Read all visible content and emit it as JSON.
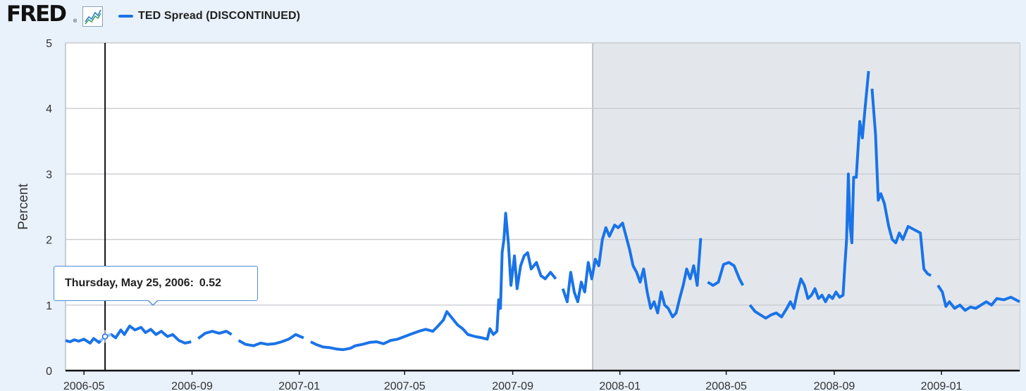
{
  "header": {
    "logo_text": "FRED",
    "logo_reg": "®",
    "logo_icon": "fred-graph-icon",
    "legend_label": "TED Spread (DISCONTINUED)"
  },
  "tooltip": {
    "date_label": "Thursday, May 25, 2006:",
    "value_label": "0.52"
  },
  "chart_data": {
    "type": "line",
    "title": "",
    "xlabel": "",
    "ylabel": "Percent",
    "xlim": [
      "2006-04-10",
      "2009-03-31"
    ],
    "ylim": [
      0,
      5
    ],
    "yticks": [
      0,
      1,
      2,
      3,
      4,
      5
    ],
    "xticks": [
      "2006-05",
      "2006-09",
      "2007-01",
      "2007-05",
      "2007-09",
      "2008-01",
      "2008-05",
      "2008-09",
      "2009-01"
    ],
    "grid": true,
    "legend_position": "top-left",
    "recession_shading": {
      "start": "2007-12-01",
      "end": "2009-03-31"
    },
    "hover": {
      "date": "2006-05-25",
      "value": 0.52
    },
    "colors": {
      "line": "#1a73e8",
      "recession": "#e3e7ec",
      "tooltip_border": "#4d8fd6"
    },
    "series": [
      {
        "name": "TED Spread (DISCONTINUED)",
        "points": [
          [
            "2006-04-10",
            0.46
          ],
          [
            "2006-04-15",
            0.44
          ],
          [
            "2006-04-20",
            0.47
          ],
          [
            "2006-04-25",
            0.45
          ],
          [
            "2006-05-01",
            0.48
          ],
          [
            "2006-05-08",
            0.42
          ],
          [
            "2006-05-12",
            0.49
          ],
          [
            "2006-05-18",
            0.43
          ],
          [
            "2006-05-25",
            0.52
          ],
          [
            "2006-06-01",
            0.55
          ],
          [
            "2006-06-06",
            0.5
          ],
          [
            "2006-06-12",
            0.62
          ],
          [
            "2006-06-16",
            0.55
          ],
          [
            "2006-06-22",
            0.68
          ],
          [
            "2006-06-28",
            0.62
          ],
          [
            "2006-07-05",
            0.66
          ],
          [
            "2006-07-10",
            0.58
          ],
          [
            "2006-07-16",
            0.63
          ],
          [
            "2006-07-22",
            0.55
          ],
          [
            "2006-07-28",
            0.6
          ],
          [
            "2006-08-04",
            0.52
          ],
          [
            "2006-08-10",
            0.55
          ],
          [
            "2006-08-17",
            0.46
          ],
          [
            "2006-08-24",
            0.42
          ],
          [
            "2006-08-31",
            0.44
          ],
          [
            null,
            null
          ],
          [
            "2006-09-08",
            0.49
          ],
          [
            "2006-09-16",
            0.57
          ],
          [
            "2006-09-24",
            0.6
          ],
          [
            "2006-10-02",
            0.57
          ],
          [
            "2006-10-10",
            0.6
          ],
          [
            "2006-10-16",
            0.55
          ],
          [
            null,
            null
          ],
          [
            "2006-10-24",
            0.46
          ],
          [
            "2006-11-01",
            0.4
          ],
          [
            "2006-11-10",
            0.38
          ],
          [
            "2006-11-18",
            0.42
          ],
          [
            "2006-11-26",
            0.4
          ],
          [
            "2006-12-04",
            0.41
          ],
          [
            "2006-12-12",
            0.44
          ],
          [
            "2006-12-20",
            0.48
          ],
          [
            "2006-12-28",
            0.55
          ],
          [
            "2007-01-02",
            0.52
          ],
          [
            "2007-01-06",
            0.5
          ],
          [
            null,
            null
          ],
          [
            "2007-01-14",
            0.44
          ],
          [
            "2007-01-20",
            0.4
          ],
          [
            "2007-01-28",
            0.36
          ],
          [
            "2007-02-05",
            0.35
          ],
          [
            "2007-02-12",
            0.33
          ],
          [
            "2007-02-20",
            0.32
          ],
          [
            "2007-02-28",
            0.34
          ],
          [
            "2007-03-06",
            0.38
          ],
          [
            "2007-03-14",
            0.4
          ],
          [
            "2007-03-22",
            0.43
          ],
          [
            "2007-03-30",
            0.44
          ],
          [
            "2007-04-07",
            0.41
          ],
          [
            "2007-04-15",
            0.46
          ],
          [
            "2007-04-23",
            0.48
          ],
          [
            "2007-05-01",
            0.52
          ],
          [
            "2007-05-09",
            0.56
          ],
          [
            "2007-05-17",
            0.6
          ],
          [
            "2007-05-25",
            0.63
          ],
          [
            "2007-06-02",
            0.6
          ],
          [
            "2007-06-08",
            0.68
          ],
          [
            "2007-06-14",
            0.77
          ],
          [
            "2007-06-18",
            0.9
          ],
          [
            "2007-06-24",
            0.8
          ],
          [
            "2007-06-30",
            0.7
          ],
          [
            "2007-07-06",
            0.64
          ],
          [
            "2007-07-12",
            0.55
          ],
          [
            "2007-07-20",
            0.52
          ],
          [
            "2007-07-28",
            0.5
          ],
          [
            "2007-08-03",
            0.48
          ],
          [
            "2007-08-06",
            0.64
          ],
          [
            "2007-08-10",
            0.55
          ],
          [
            "2007-08-14",
            0.6
          ],
          [
            "2007-08-16",
            1.08
          ],
          [
            "2007-08-18",
            0.95
          ],
          [
            "2007-08-20",
            1.8
          ],
          [
            "2007-08-22",
            2.0
          ],
          [
            "2007-08-24",
            2.4
          ],
          [
            "2007-08-27",
            1.95
          ],
          [
            "2007-08-30",
            1.3
          ],
          [
            "2007-09-03",
            1.75
          ],
          [
            "2007-09-06",
            1.25
          ],
          [
            "2007-09-10",
            1.6
          ],
          [
            "2007-09-14",
            1.75
          ],
          [
            "2007-09-18",
            1.8
          ],
          [
            "2007-09-22",
            1.55
          ],
          [
            "2007-09-28",
            1.65
          ],
          [
            "2007-10-03",
            1.45
          ],
          [
            "2007-10-08",
            1.4
          ],
          [
            "2007-10-14",
            1.5
          ],
          [
            "2007-10-20",
            1.4
          ],
          [
            null,
            null
          ],
          [
            "2007-10-28",
            1.25
          ],
          [
            "2007-11-02",
            1.05
          ],
          [
            "2007-11-06",
            1.5
          ],
          [
            "2007-11-10",
            1.2
          ],
          [
            "2007-11-14",
            1.05
          ],
          [
            "2007-11-18",
            1.35
          ],
          [
            "2007-11-22",
            1.2
          ],
          [
            "2007-11-26",
            1.65
          ],
          [
            "2007-11-30",
            1.4
          ],
          [
            "2007-12-04",
            1.7
          ],
          [
            "2007-12-08",
            1.6
          ],
          [
            "2007-12-12",
            2.0
          ],
          [
            "2007-12-16",
            2.18
          ],
          [
            "2007-12-20",
            2.05
          ],
          [
            "2007-12-26",
            2.22
          ],
          [
            "2007-12-30",
            2.18
          ],
          [
            "2008-01-04",
            2.25
          ],
          [
            "2008-01-08",
            2.05
          ],
          [
            "2008-01-12",
            1.85
          ],
          [
            "2008-01-16",
            1.6
          ],
          [
            "2008-01-20",
            1.5
          ],
          [
            "2008-01-24",
            1.35
          ],
          [
            "2008-01-28",
            1.55
          ],
          [
            "2008-02-01",
            1.2
          ],
          [
            "2008-02-05",
            0.95
          ],
          [
            "2008-02-09",
            1.05
          ],
          [
            "2008-02-13",
            0.88
          ],
          [
            "2008-02-17",
            1.2
          ],
          [
            "2008-02-21",
            1.0
          ],
          [
            "2008-02-25",
            0.95
          ],
          [
            "2008-03-01",
            0.82
          ],
          [
            "2008-03-05",
            0.88
          ],
          [
            "2008-03-09",
            1.1
          ],
          [
            "2008-03-13",
            1.3
          ],
          [
            "2008-03-17",
            1.55
          ],
          [
            "2008-03-21",
            1.4
          ],
          [
            "2008-03-25",
            1.6
          ],
          [
            "2008-03-29",
            1.3
          ],
          [
            "2008-04-02",
            2.02
          ],
          [
            null,
            null
          ],
          [
            "2008-04-10",
            1.35
          ],
          [
            "2008-04-16",
            1.3
          ],
          [
            "2008-04-22",
            1.35
          ],
          [
            "2008-04-28",
            1.62
          ],
          [
            "2008-05-04",
            1.65
          ],
          [
            "2008-05-10",
            1.6
          ],
          [
            "2008-05-16",
            1.4
          ],
          [
            "2008-05-20",
            1.3
          ],
          [
            null,
            null
          ],
          [
            "2008-05-28",
            1.0
          ],
          [
            "2008-06-03",
            0.9
          ],
          [
            "2008-06-09",
            0.85
          ],
          [
            "2008-06-15",
            0.8
          ],
          [
            "2008-06-21",
            0.85
          ],
          [
            "2008-06-27",
            0.88
          ],
          [
            "2008-07-03",
            0.82
          ],
          [
            "2008-07-09",
            0.95
          ],
          [
            "2008-07-13",
            1.05
          ],
          [
            "2008-07-17",
            0.95
          ],
          [
            "2008-07-21",
            1.2
          ],
          [
            "2008-07-25",
            1.4
          ],
          [
            "2008-07-29",
            1.3
          ],
          [
            "2008-08-02",
            1.1
          ],
          [
            "2008-08-06",
            1.15
          ],
          [
            "2008-08-10",
            1.25
          ],
          [
            "2008-08-14",
            1.1
          ],
          [
            "2008-08-18",
            1.15
          ],
          [
            "2008-08-22",
            1.05
          ],
          [
            "2008-08-26",
            1.15
          ],
          [
            "2008-08-30",
            1.1
          ],
          [
            "2008-09-03",
            1.2
          ],
          [
            "2008-09-07",
            1.12
          ],
          [
            "2008-09-11",
            1.15
          ],
          [
            "2008-09-13",
            1.6
          ],
          [
            "2008-09-15",
            2.0
          ],
          [
            "2008-09-17",
            3.0
          ],
          [
            "2008-09-19",
            2.2
          ],
          [
            "2008-09-21",
            1.95
          ],
          [
            "2008-09-23",
            2.95
          ],
          [
            "2008-09-26",
            2.95
          ],
          [
            "2008-09-30",
            3.8
          ],
          [
            "2008-10-03",
            3.55
          ],
          [
            "2008-10-06",
            4.0
          ],
          [
            "2008-10-10",
            4.57
          ],
          [
            null,
            null
          ],
          [
            "2008-10-14",
            4.3
          ],
          [
            "2008-10-18",
            3.6
          ],
          [
            "2008-10-21",
            2.6
          ],
          [
            "2008-10-24",
            2.7
          ],
          [
            "2008-10-28",
            2.55
          ],
          [
            "2008-11-02",
            2.2
          ],
          [
            "2008-11-06",
            2.0
          ],
          [
            "2008-11-10",
            1.95
          ],
          [
            "2008-11-14",
            2.1
          ],
          [
            "2008-11-18",
            2.0
          ],
          [
            "2008-11-24",
            2.2
          ],
          [
            "2008-12-01",
            2.15
          ],
          [
            "2008-12-08",
            2.1
          ],
          [
            "2008-12-12",
            1.55
          ],
          [
            "2008-12-16",
            1.48
          ],
          [
            "2008-12-20",
            1.45
          ],
          [
            null,
            null
          ],
          [
            "2008-12-28",
            1.3
          ],
          [
            "2009-01-02",
            1.2
          ],
          [
            "2009-01-06",
            0.98
          ],
          [
            "2009-01-10",
            1.05
          ],
          [
            "2009-01-16",
            0.95
          ],
          [
            "2009-01-22",
            1.0
          ],
          [
            "2009-01-28",
            0.92
          ],
          [
            "2009-02-03",
            0.97
          ],
          [
            "2009-02-09",
            0.95
          ],
          [
            "2009-02-15",
            1.0
          ],
          [
            "2009-02-21",
            1.05
          ],
          [
            "2009-02-27",
            1.0
          ],
          [
            "2009-03-05",
            1.1
          ],
          [
            "2009-03-13",
            1.08
          ],
          [
            "2009-03-21",
            1.12
          ],
          [
            "2009-03-31",
            1.05
          ]
        ]
      }
    ]
  }
}
